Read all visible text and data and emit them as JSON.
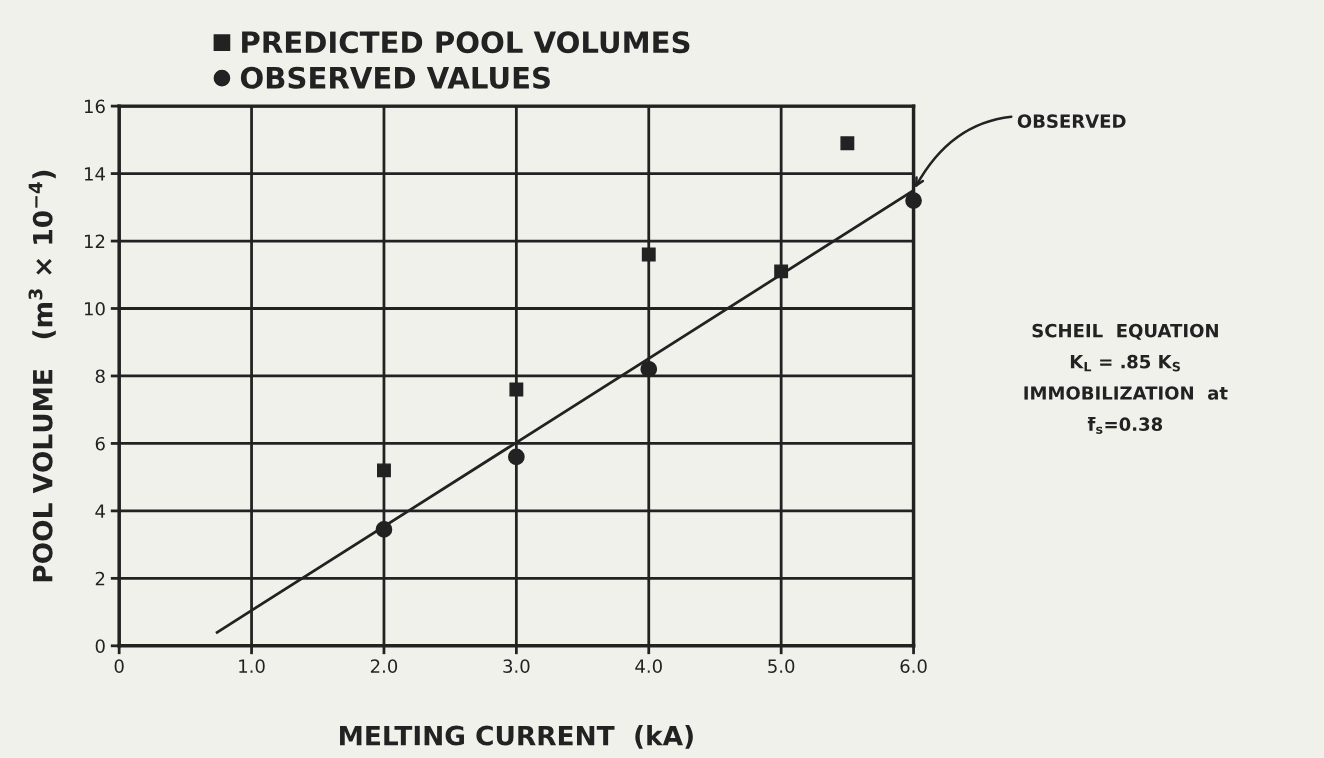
{
  "chart_data": {
    "type": "scatter",
    "xlabel": "MELTING CURRENT  (kA)",
    "ylabel": "POOL VOLUME   (m$^{3}$ × 10$^{−4}$)",
    "xlim": [
      0,
      6
    ],
    "ylim": [
      0,
      16
    ],
    "xticks": [
      0,
      {
        "value": 1,
        "label": "1.0"
      },
      {
        "value": 2,
        "label": "2.0"
      },
      {
        "value": 3,
        "label": "3.0"
      },
      {
        "value": 4,
        "label": "4.0"
      },
      {
        "value": 5,
        "label": "5.0"
      },
      {
        "value": 6,
        "label": "6.0"
      }
    ],
    "yticks": [
      0,
      2,
      4,
      6,
      8,
      10,
      12,
      14,
      16
    ],
    "grid": true,
    "legend": "top left",
    "series": [
      {
        "name": "PREDICTED POOL VOLUMES",
        "color": "#222222",
        "marker": "square",
        "x": [
          2.0,
          3.0,
          4.0,
          5.0,
          5.5
        ],
        "values": [
          5.2,
          7.6,
          11.6,
          11.1,
          14.9
        ]
      },
      {
        "name": "OBSERVED VALUES",
        "color": "#222222",
        "marker": "circle",
        "x": [
          2.0,
          3.0,
          4.0,
          6.0
        ],
        "values": [
          3.45,
          5.6,
          8.2,
          13.2
        ]
      },
      {
        "type": "line",
        "color": "#222222",
        "marker": "none",
        "x": [
          0.74,
          6.0
        ],
        "values": [
          0.4,
          13.5
        ]
      }
    ],
    "annotations": [
      {
        "text": "OBSERVED",
        "x": 6.0,
        "y": 13.5
      },
      "SCHEIL  EQUATION\nK$_{L}$ = .85 K$_{S}$\nIMMOBILIZATION  at\nf̄$_{s}$=0.38"
    ]
  }
}
